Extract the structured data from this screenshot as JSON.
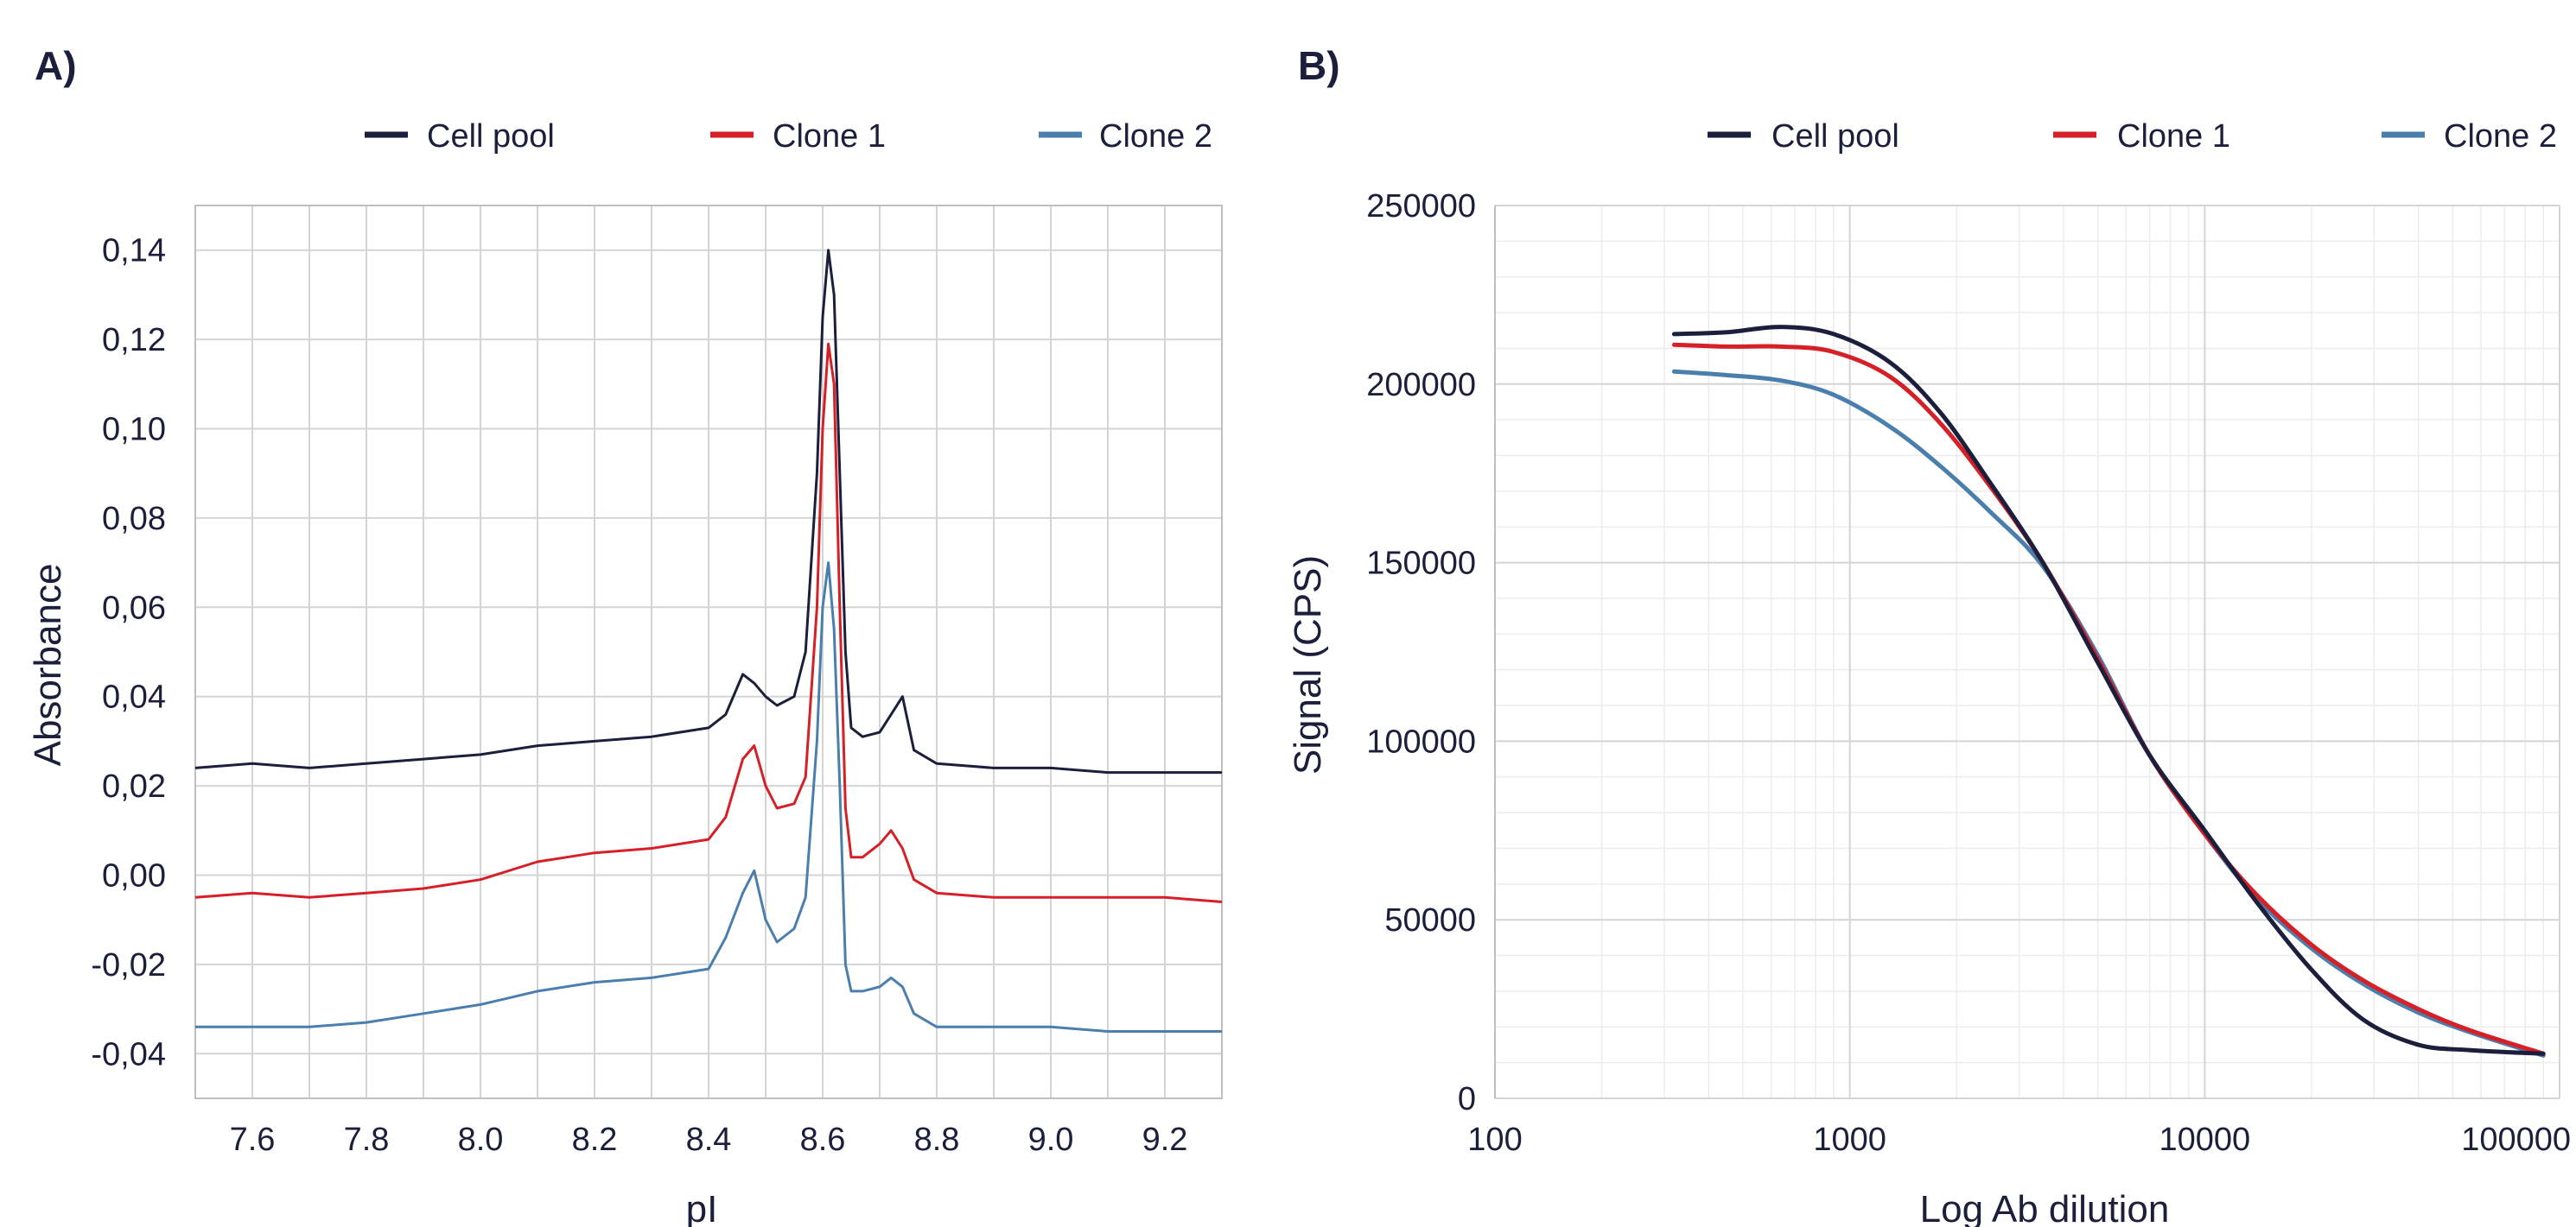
{
  "colors": {
    "cell_pool": "#1b1f3b",
    "clone1": "#d61f26",
    "clone2": "#4a7fad",
    "text": "#1b1f3b"
  },
  "chart_data": [
    {
      "panel_label": "A)",
      "type": "line",
      "xlabel": "pI",
      "ylabel": "Absorbance",
      "xlim": [
        7.5,
        9.3
      ],
      "ylim": [
        -0.05,
        0.15
      ],
      "x_ticks": [
        "7.6",
        "7.8",
        "8.0",
        "8.2",
        "8.4",
        "8.6",
        "8.8",
        "9.0",
        "9.2"
      ],
      "y_ticks": [
        "0,14",
        "0,12",
        "0,10",
        "0,08",
        "0,06",
        "0,04",
        "0,02",
        "0,00",
        "-0,02",
        "-0,04"
      ],
      "grid": true,
      "legend_position": "top",
      "series": [
        {
          "name": "Cell pool",
          "color": "#1b1f3b",
          "x": [
            7.5,
            7.6,
            7.7,
            7.8,
            7.9,
            8.0,
            8.1,
            8.2,
            8.3,
            8.4,
            8.43,
            8.46,
            8.48,
            8.5,
            8.52,
            8.55,
            8.57,
            8.59,
            8.6,
            8.61,
            8.62,
            8.63,
            8.64,
            8.65,
            8.67,
            8.7,
            8.72,
            8.74,
            8.76,
            8.8,
            8.9,
            9.0,
            9.1,
            9.2,
            9.3
          ],
          "y": [
            0.024,
            0.025,
            0.024,
            0.025,
            0.026,
            0.027,
            0.029,
            0.03,
            0.031,
            0.033,
            0.036,
            0.045,
            0.043,
            0.04,
            0.038,
            0.04,
            0.05,
            0.09,
            0.125,
            0.14,
            0.13,
            0.09,
            0.05,
            0.033,
            0.031,
            0.032,
            0.036,
            0.04,
            0.028,
            0.025,
            0.024,
            0.024,
            0.023,
            0.023,
            0.023
          ]
        },
        {
          "name": "Clone 1",
          "color": "#d61f26",
          "x": [
            7.5,
            7.6,
            7.7,
            7.8,
            7.9,
            8.0,
            8.1,
            8.2,
            8.3,
            8.4,
            8.43,
            8.46,
            8.48,
            8.5,
            8.52,
            8.55,
            8.57,
            8.59,
            8.6,
            8.61,
            8.62,
            8.63,
            8.64,
            8.65,
            8.67,
            8.7,
            8.72,
            8.74,
            8.76,
            8.8,
            8.9,
            9.0,
            9.1,
            9.2,
            9.3
          ],
          "y": [
            -0.005,
            -0.004,
            -0.005,
            -0.004,
            -0.003,
            -0.001,
            0.003,
            0.005,
            0.006,
            0.008,
            0.013,
            0.026,
            0.029,
            0.02,
            0.015,
            0.016,
            0.022,
            0.06,
            0.1,
            0.119,
            0.11,
            0.06,
            0.015,
            0.004,
            0.004,
            0.007,
            0.01,
            0.006,
            -0.001,
            -0.004,
            -0.005,
            -0.005,
            -0.005,
            -0.005,
            -0.006
          ]
        },
        {
          "name": "Clone 2",
          "color": "#4a7fad",
          "x": [
            7.5,
            7.6,
            7.7,
            7.8,
            7.9,
            8.0,
            8.1,
            8.2,
            8.3,
            8.4,
            8.43,
            8.46,
            8.48,
            8.5,
            8.52,
            8.55,
            8.57,
            8.59,
            8.6,
            8.61,
            8.62,
            8.63,
            8.64,
            8.65,
            8.67,
            8.7,
            8.72,
            8.74,
            8.76,
            8.8,
            8.9,
            9.0,
            9.1,
            9.2,
            9.3
          ],
          "y": [
            -0.034,
            -0.034,
            -0.034,
            -0.033,
            -0.031,
            -0.029,
            -0.026,
            -0.024,
            -0.023,
            -0.021,
            -0.014,
            -0.004,
            0.001,
            -0.01,
            -0.015,
            -0.012,
            -0.005,
            0.03,
            0.06,
            0.07,
            0.055,
            0.02,
            -0.02,
            -0.026,
            -0.026,
            -0.025,
            -0.023,
            -0.025,
            -0.031,
            -0.034,
            -0.034,
            -0.034,
            -0.035,
            -0.035,
            -0.035
          ]
        }
      ]
    },
    {
      "panel_label": "B)",
      "type": "line",
      "xlabel": "Log Ab dilution",
      "ylabel": "Signal (CPS)",
      "x_scale": "log",
      "xlim": [
        100,
        100000
      ],
      "ylim": [
        0,
        250000
      ],
      "x_ticks": [
        "100",
        "1000",
        "10000",
        "100000"
      ],
      "y_ticks": [
        "250000",
        "200000",
        "150000",
        "100000",
        "50000",
        "0"
      ],
      "grid": true,
      "legend_position": "top",
      "series": [
        {
          "name": "Cell pool",
          "color": "#1b1f3b",
          "x": [
            320,
            450,
            640,
            900,
            1300,
            1800,
            2500,
            3500,
            5000,
            7000,
            10000,
            14000,
            20000,
            28000,
            40000,
            56000,
            90000
          ],
          "y": [
            214000,
            214500,
            216000,
            214000,
            206000,
            192000,
            172000,
            150000,
            122000,
            96000,
            75000,
            55000,
            36000,
            22000,
            15000,
            13500,
            12500
          ]
        },
        {
          "name": "Clone 1",
          "color": "#d61f26",
          "x": [
            320,
            450,
            640,
            900,
            1300,
            1800,
            2500,
            3500,
            5000,
            7000,
            10000,
            14000,
            20000,
            28000,
            40000,
            56000,
            90000
          ],
          "y": [
            211000,
            210500,
            210500,
            209000,
            202000,
            189000,
            171000,
            150000,
            123000,
            96000,
            74000,
            57000,
            43000,
            33000,
            25000,
            19000,
            12500
          ]
        },
        {
          "name": "Clone 2",
          "color": "#4a7fad",
          "x": [
            320,
            450,
            640,
            900,
            1300,
            1800,
            2500,
            3500,
            5000,
            7000,
            10000,
            14000,
            20000,
            28000,
            40000,
            56000,
            90000
          ],
          "y": [
            203500,
            202500,
            201000,
            197000,
            188000,
            177000,
            164000,
            149000,
            124000,
            96000,
            74000,
            56000,
            42000,
            32000,
            24000,
            18500,
            12000
          ]
        }
      ]
    }
  ]
}
